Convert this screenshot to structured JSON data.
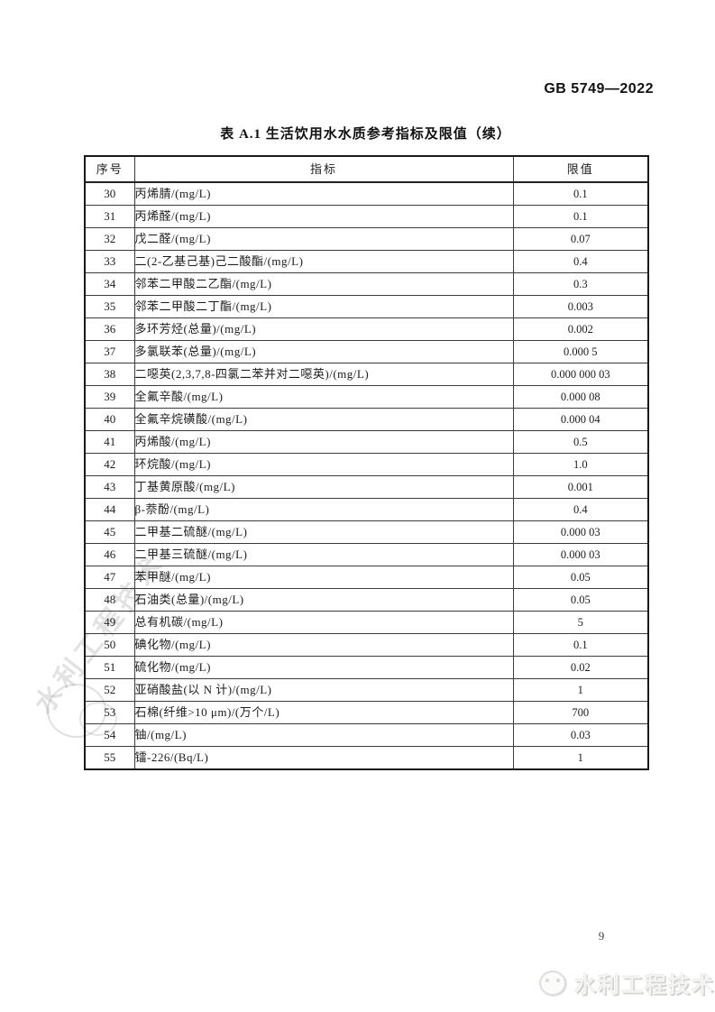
{
  "page": {
    "doc_code": "GB 5749—2022",
    "table_title": "表 A.1  生活饮用水水质参考指标及限值（续）",
    "page_number": "9",
    "footer_logo_text": "水利工程技术",
    "watermark_text": "水利工程技术"
  },
  "colors": {
    "table_border": "#191919",
    "text": "#1c1c1c",
    "watermark": "#9e9e9e",
    "footer_logo": "#f4f4f2"
  },
  "table": {
    "headers": [
      "序号",
      "指标",
      "限值"
    ],
    "rows": [
      {
        "no": "30",
        "indicator": "丙烯腈/(mg/L)",
        "limit": "0.1"
      },
      {
        "no": "31",
        "indicator": "丙烯醛/(mg/L)",
        "limit": "0.1"
      },
      {
        "no": "32",
        "indicator": "戊二醛/(mg/L)",
        "limit": "0.07"
      },
      {
        "no": "33",
        "indicator": "二(2-乙基己基)己二酸酯/(mg/L)",
        "limit": "0.4"
      },
      {
        "no": "34",
        "indicator": "邻苯二甲酸二乙酯/(mg/L)",
        "limit": "0.3"
      },
      {
        "no": "35",
        "indicator": "邻苯二甲酸二丁酯/(mg/L)",
        "limit": "0.003"
      },
      {
        "no": "36",
        "indicator": "多环芳烃(总量)/(mg/L)",
        "limit": "0.002"
      },
      {
        "no": "37",
        "indicator": "多氯联苯(总量)/(mg/L)",
        "limit": "0.000 5"
      },
      {
        "no": "38",
        "indicator": "二噁英(2,3,7,8-四氯二苯并对二噁英)/(mg/L)",
        "limit": "0.000 000 03"
      },
      {
        "no": "39",
        "indicator": "全氟辛酸/(mg/L)",
        "limit": "0.000 08"
      },
      {
        "no": "40",
        "indicator": "全氟辛烷磺酸/(mg/L)",
        "limit": "0.000 04"
      },
      {
        "no": "41",
        "indicator": "丙烯酸/(mg/L)",
        "limit": "0.5"
      },
      {
        "no": "42",
        "indicator": "环烷酸/(mg/L)",
        "limit": "1.0"
      },
      {
        "no": "43",
        "indicator": "丁基黄原酸/(mg/L)",
        "limit": "0.001"
      },
      {
        "no": "44",
        "indicator": "β-萘酚/(mg/L)",
        "limit": "0.4"
      },
      {
        "no": "45",
        "indicator": "二甲基二硫醚/(mg/L)",
        "limit": "0.000 03"
      },
      {
        "no": "46",
        "indicator": "二甲基三硫醚/(mg/L)",
        "limit": "0.000 03"
      },
      {
        "no": "47",
        "indicator": "苯甲醚/(mg/L)",
        "limit": "0.05"
      },
      {
        "no": "48",
        "indicator": "石油类(总量)/(mg/L)",
        "limit": "0.05"
      },
      {
        "no": "49",
        "indicator": "总有机碳/(mg/L)",
        "limit": "5"
      },
      {
        "no": "50",
        "indicator": "碘化物/(mg/L)",
        "limit": "0.1"
      },
      {
        "no": "51",
        "indicator": "硫化物/(mg/L)",
        "limit": "0.02"
      },
      {
        "no": "52",
        "indicator": "亚硝酸盐(以 N 计)/(mg/L)",
        "limit": "1"
      },
      {
        "no": "53",
        "indicator": "石棉(纤维>10 μm)/(万个/L)",
        "limit": "700"
      },
      {
        "no": "54",
        "indicator": "铀/(mg/L)",
        "limit": "0.03"
      },
      {
        "no": "55",
        "indicator": "镭-226/(Bq/L)",
        "limit": "1"
      }
    ]
  }
}
